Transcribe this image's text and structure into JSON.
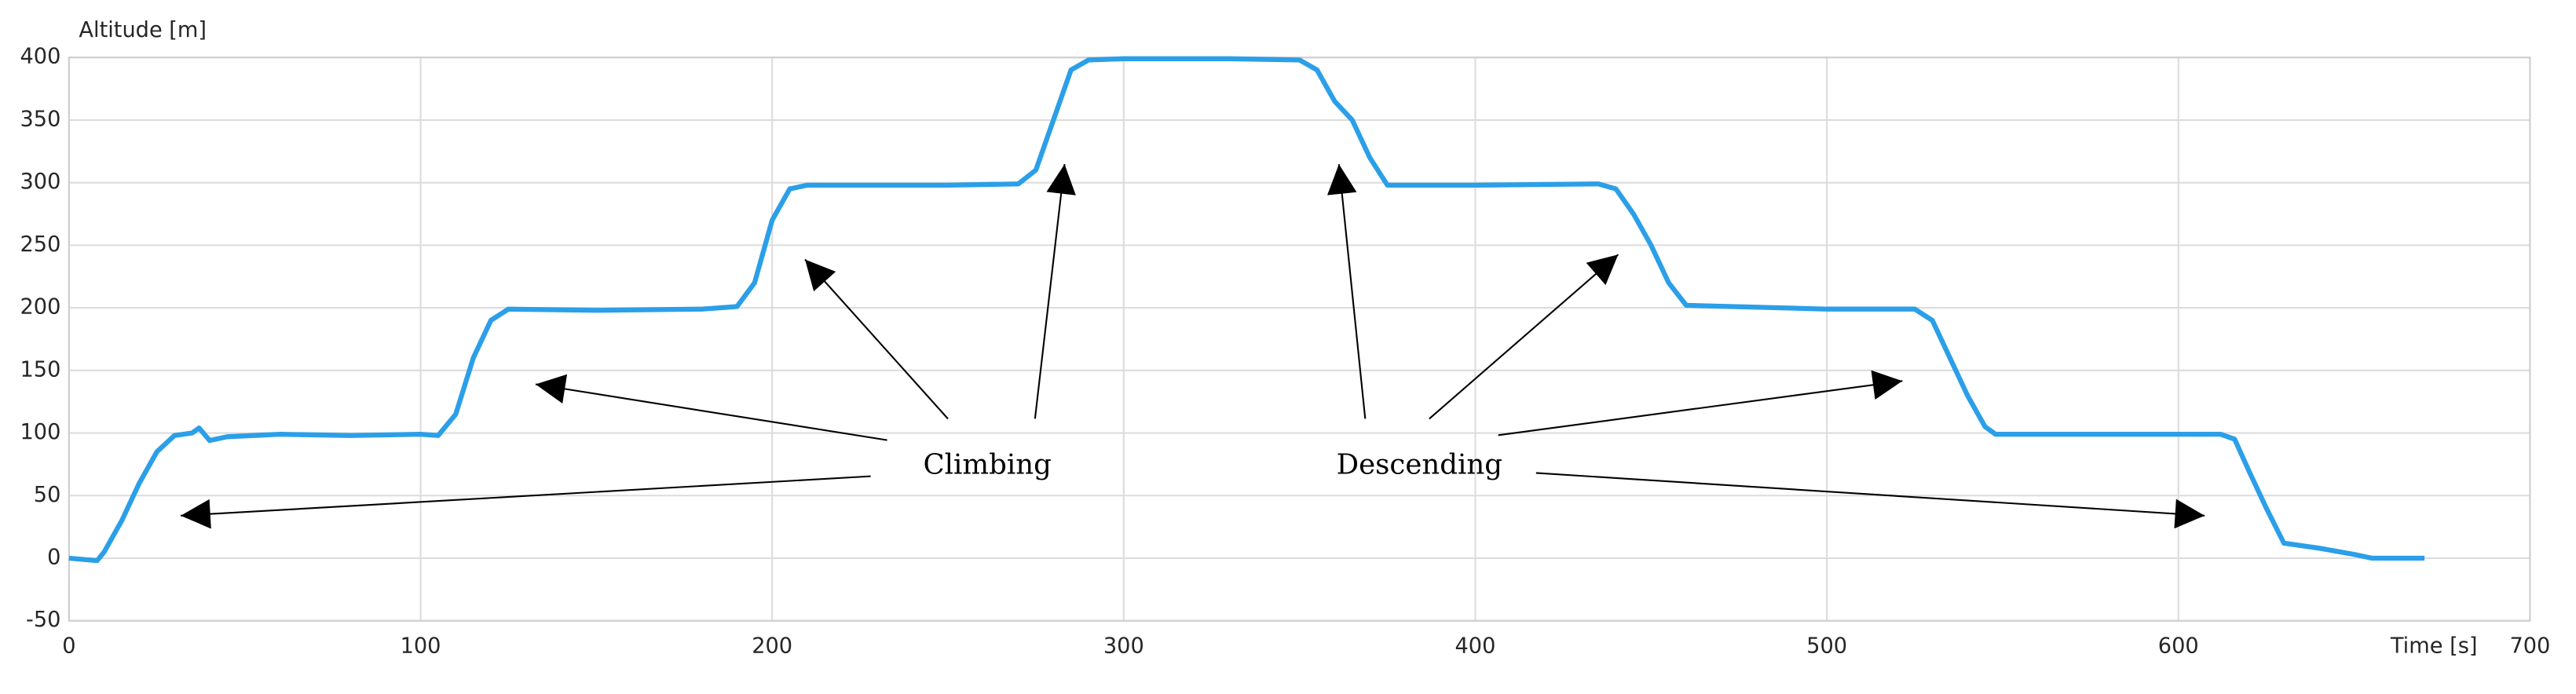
{
  "chart_data": {
    "type": "line",
    "ylabel": "Altitude [m]",
    "xlabel": "Time [s]",
    "annotations": [
      {
        "text": "Climbing"
      },
      {
        "text": "Descending"
      }
    ],
    "color": "#2b9fe8",
    "grid": true,
    "xlim": [
      0,
      700
    ],
    "xticks": [
      0,
      100,
      200,
      300,
      400,
      500,
      600,
      700
    ],
    "ylim": [
      -50,
      400
    ],
    "yticks": [
      -50,
      0,
      50,
      100,
      150,
      200,
      250,
      300,
      350,
      400
    ],
    "x": [
      0,
      8,
      10,
      15,
      20,
      25,
      30,
      35,
      37,
      40,
      45,
      60,
      80,
      100,
      105,
      110,
      115,
      120,
      125,
      150,
      180,
      190,
      195,
      200,
      205,
      210,
      250,
      270,
      275,
      280,
      285,
      290,
      300,
      330,
      350,
      355,
      360,
      365,
      370,
      375,
      400,
      435,
      440,
      445,
      450,
      455,
      460,
      500,
      525,
      530,
      535,
      540,
      545,
      548,
      600,
      612,
      616,
      620,
      625,
      630,
      640,
      650,
      655,
      670
    ],
    "values": [
      0,
      -2,
      5,
      30,
      60,
      85,
      98,
      100,
      104,
      94,
      97,
      99,
      98,
      99,
      98,
      115,
      160,
      190,
      199,
      198,
      199,
      201,
      220,
      270,
      295,
      298,
      298,
      299,
      310,
      350,
      390,
      398,
      399,
      399,
      398,
      390,
      365,
      350,
      320,
      298,
      298,
      299,
      295,
      275,
      250,
      220,
      202,
      199,
      199,
      190,
      160,
      130,
      105,
      99,
      99,
      99,
      95,
      70,
      40,
      12,
      8,
      3,
      0,
      0
    ]
  }
}
